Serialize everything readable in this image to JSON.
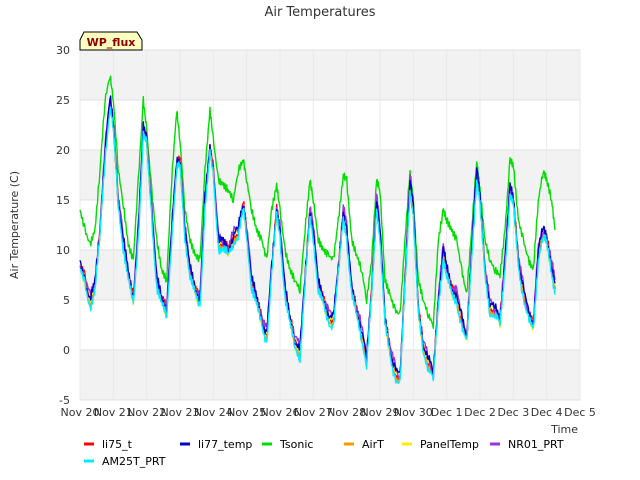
{
  "chart_data": {
    "type": "line",
    "title": "Air Temperatures",
    "xlabel": "Time",
    "ylabel": "Air Temperature (C)",
    "badge": "WP_flux",
    "ylim": [
      -5,
      30
    ],
    "yticks": [
      -5,
      0,
      5,
      10,
      15,
      20,
      25,
      30
    ],
    "xlim": [
      "2023-11-20",
      "2023-12-05"
    ],
    "xticks": [
      "Nov 20",
      "Nov 21",
      "Nov 22",
      "Nov 23",
      "Nov 24",
      "Nov 25",
      "Nov 26",
      "Nov 27",
      "Nov 28",
      "Nov 29",
      "Nov 30",
      "Dec 1",
      "Dec 2",
      "Dec 3",
      "Dec 4",
      "Dec 5"
    ],
    "grid": true,
    "legend_position": "bottom",
    "series": [
      {
        "name": "li75_t",
        "color": "#ff0000",
        "offset": 0.0,
        "scale": 1.0
      },
      {
        "name": "li77_temp",
        "color": "#0000cc",
        "offset": 0.1,
        "scale": 1.0
      },
      {
        "name": "Tsonic",
        "color": "#00dd00",
        "offset": 0.0,
        "scale": 1.0
      },
      {
        "name": "AirT",
        "color": "#ff9900",
        "offset": -0.3,
        "scale": 1.0
      },
      {
        "name": "PanelTemp",
        "color": "#ffee00",
        "offset": -0.2,
        "scale": 1.0
      },
      {
        "name": "NR01_PRT",
        "color": "#9933dd",
        "offset": 0.2,
        "scale": 1.0
      },
      {
        "name": "AM25T_PRT",
        "color": "#00eeff",
        "offset": -0.6,
        "scale": 1.0
      }
    ],
    "base_points": [
      [
        0.0,
        8.5
      ],
      [
        0.15,
        7.0
      ],
      [
        0.3,
        5.0
      ],
      [
        0.45,
        6.5
      ],
      [
        0.6,
        12.0
      ],
      [
        0.75,
        20.0
      ],
      [
        0.9,
        25.0
      ],
      [
        1.0,
        22.5
      ],
      [
        1.15,
        15.0
      ],
      [
        1.3,
        11.0
      ],
      [
        1.45,
        7.5
      ],
      [
        1.6,
        5.0
      ],
      [
        1.75,
        12.0
      ],
      [
        1.9,
        22.0
      ],
      [
        2.0,
        21.0
      ],
      [
        2.15,
        14.0
      ],
      [
        2.3,
        7.0
      ],
      [
        2.45,
        5.0
      ],
      [
        2.6,
        4.0
      ],
      [
        2.75,
        12.0
      ],
      [
        2.9,
        18.5
      ],
      [
        3.0,
        19.0
      ],
      [
        3.15,
        12.0
      ],
      [
        3.3,
        8.0
      ],
      [
        3.45,
        6.0
      ],
      [
        3.6,
        5.0
      ],
      [
        3.75,
        15.0
      ],
      [
        3.9,
        20.0
      ],
      [
        4.0,
        18.0
      ],
      [
        4.15,
        11.0
      ],
      [
        4.3,
        10.5
      ],
      [
        4.45,
        10.0
      ],
      [
        4.6,
        11.5
      ],
      [
        4.75,
        12.0
      ],
      [
        4.9,
        14.5
      ],
      [
        5.0,
        12.0
      ],
      [
        5.15,
        7.0
      ],
      [
        5.3,
        5.0
      ],
      [
        5.45,
        3.0
      ],
      [
        5.6,
        1.5
      ],
      [
        5.75,
        8.0
      ],
      [
        5.9,
        14.0
      ],
      [
        6.0,
        12.0
      ],
      [
        6.15,
        6.0
      ],
      [
        6.3,
        3.0
      ],
      [
        6.45,
        1.0
      ],
      [
        6.6,
        0.0
      ],
      [
        6.75,
        7.0
      ],
      [
        6.9,
        14.0
      ],
      [
        7.0,
        12.0
      ],
      [
        7.15,
        6.5
      ],
      [
        7.3,
        5.0
      ],
      [
        7.45,
        3.5
      ],
      [
        7.6,
        3.0
      ],
      [
        7.75,
        8.0
      ],
      [
        7.9,
        14.0
      ],
      [
        8.0,
        12.0
      ],
      [
        8.15,
        6.0
      ],
      [
        8.3,
        4.0
      ],
      [
        8.45,
        2.0
      ],
      [
        8.6,
        -1.0
      ],
      [
        8.75,
        6.0
      ],
      [
        8.9,
        15.0
      ],
      [
        9.0,
        12.0
      ],
      [
        9.15,
        3.0
      ],
      [
        9.3,
        0.0
      ],
      [
        9.45,
        -2.0
      ],
      [
        9.6,
        -3.0
      ],
      [
        9.75,
        7.0
      ],
      [
        9.9,
        17.0
      ],
      [
        10.0,
        14.0
      ],
      [
        10.15,
        4.0
      ],
      [
        10.3,
        0.5
      ],
      [
        10.45,
        -1.0
      ],
      [
        10.6,
        -2.5
      ],
      [
        10.75,
        5.0
      ],
      [
        10.9,
        10.0
      ],
      [
        11.0,
        8.0
      ],
      [
        11.15,
        6.0
      ],
      [
        11.3,
        5.5
      ],
      [
        11.45,
        3.0
      ],
      [
        11.6,
        1.0
      ],
      [
        11.75,
        10.0
      ],
      [
        11.9,
        18.0
      ],
      [
        12.0,
        15.0
      ],
      [
        12.15,
        8.0
      ],
      [
        12.3,
        4.5
      ],
      [
        12.45,
        4.0
      ],
      [
        12.6,
        3.0
      ],
      [
        12.75,
        9.0
      ],
      [
        12.9,
        16.0
      ],
      [
        13.0,
        15.0
      ],
      [
        13.15,
        9.0
      ],
      [
        13.3,
        6.0
      ],
      [
        13.45,
        3.5
      ],
      [
        13.6,
        2.5
      ],
      [
        13.75,
        10.0
      ],
      [
        13.9,
        12.0
      ],
      [
        14.0,
        11.0
      ],
      [
        14.15,
        8.5
      ],
      [
        14.25,
        6.5
      ]
    ],
    "tsonic_points": [
      [
        0.0,
        14.0
      ],
      [
        0.15,
        12.0
      ],
      [
        0.3,
        10.5
      ],
      [
        0.45,
        12.0
      ],
      [
        0.6,
        18.0
      ],
      [
        0.75,
        25.0
      ],
      [
        0.9,
        27.5
      ],
      [
        1.0,
        25.0
      ],
      [
        1.15,
        18.0
      ],
      [
        1.3,
        14.5
      ],
      [
        1.45,
        10.5
      ],
      [
        1.6,
        9.0
      ],
      [
        1.75,
        17.0
      ],
      [
        1.9,
        25.0
      ],
      [
        2.0,
        22.0
      ],
      [
        2.15,
        16.0
      ],
      [
        2.3,
        11.0
      ],
      [
        2.45,
        8.0
      ],
      [
        2.6,
        7.0
      ],
      [
        2.75,
        17.0
      ],
      [
        2.9,
        24.0
      ],
      [
        3.0,
        21.0
      ],
      [
        3.15,
        14.0
      ],
      [
        3.3,
        11.0
      ],
      [
        3.45,
        9.5
      ],
      [
        3.6,
        9.0
      ],
      [
        3.75,
        18.0
      ],
      [
        3.9,
        24.0
      ],
      [
        4.0,
        21.0
      ],
      [
        4.15,
        17.0
      ],
      [
        4.3,
        16.5
      ],
      [
        4.45,
        16.0
      ],
      [
        4.6,
        15.0
      ],
      [
        4.75,
        18.0
      ],
      [
        4.9,
        19.0
      ],
      [
        5.0,
        17.0
      ],
      [
        5.15,
        14.0
      ],
      [
        5.3,
        12.0
      ],
      [
        5.45,
        11.0
      ],
      [
        5.6,
        9.0
      ],
      [
        5.75,
        14.0
      ],
      [
        5.9,
        16.5
      ],
      [
        6.0,
        14.0
      ],
      [
        6.15,
        10.0
      ],
      [
        6.3,
        8.0
      ],
      [
        6.45,
        7.0
      ],
      [
        6.6,
        6.0
      ],
      [
        6.75,
        12.0
      ],
      [
        6.9,
        17.0
      ],
      [
        7.0,
        15.0
      ],
      [
        7.15,
        11.0
      ],
      [
        7.3,
        10.0
      ],
      [
        7.45,
        9.5
      ],
      [
        7.6,
        9.0
      ],
      [
        7.75,
        13.0
      ],
      [
        7.9,
        17.5
      ],
      [
        8.0,
        17.0
      ],
      [
        8.15,
        11.0
      ],
      [
        8.3,
        9.5
      ],
      [
        8.45,
        8.0
      ],
      [
        8.6,
        5.0
      ],
      [
        8.75,
        9.0
      ],
      [
        8.9,
        17.0
      ],
      [
        9.0,
        16.0
      ],
      [
        9.15,
        7.0
      ],
      [
        9.3,
        5.5
      ],
      [
        9.45,
        4.0
      ],
      [
        9.6,
        3.5
      ],
      [
        9.75,
        11.0
      ],
      [
        9.9,
        18.0
      ],
      [
        10.0,
        15.0
      ],
      [
        10.15,
        7.0
      ],
      [
        10.3,
        5.0
      ],
      [
        10.45,
        3.5
      ],
      [
        10.6,
        2.5
      ],
      [
        10.75,
        11.0
      ],
      [
        10.9,
        14.0
      ],
      [
        11.0,
        13.0
      ],
      [
        11.15,
        12.0
      ],
      [
        11.3,
        11.0
      ],
      [
        11.45,
        8.0
      ],
      [
        11.6,
        5.5
      ],
      [
        11.75,
        12.0
      ],
      [
        11.9,
        19.0
      ],
      [
        12.0,
        16.0
      ],
      [
        12.15,
        11.0
      ],
      [
        12.3,
        9.0
      ],
      [
        12.45,
        8.0
      ],
      [
        12.6,
        7.5
      ],
      [
        12.75,
        12.0
      ],
      [
        12.9,
        19.0
      ],
      [
        13.0,
        18.5
      ],
      [
        13.15,
        13.0
      ],
      [
        13.3,
        11.0
      ],
      [
        13.45,
        9.0
      ],
      [
        13.6,
        8.0
      ],
      [
        13.75,
        15.0
      ],
      [
        13.9,
        18.0
      ],
      [
        14.0,
        17.0
      ],
      [
        14.15,
        15.0
      ],
      [
        14.25,
        12.0
      ]
    ]
  }
}
